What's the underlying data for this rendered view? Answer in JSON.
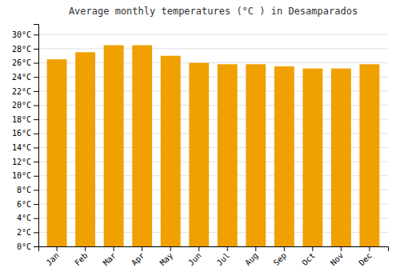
{
  "chart_data": {
    "type": "bar",
    "title": "Average monthly temperatures (°C ) in Desamparados",
    "categories": [
      "Jan",
      "Feb",
      "Mar",
      "Apr",
      "May",
      "Jun",
      "Jul",
      "Aug",
      "Sep",
      "Oct",
      "Nov",
      "Dec"
    ],
    "values": [
      26.5,
      27.5,
      28.5,
      28.5,
      27.0,
      26.0,
      25.8,
      25.8,
      25.5,
      25.2,
      25.2,
      25.8
    ],
    "color": "#F0A000",
    "ylim": [
      0,
      31.5
    ],
    "yticks": [
      {
        "value": 0,
        "label": "0°C"
      },
      {
        "value": 2,
        "label": "2°C"
      },
      {
        "value": 4,
        "label": "4°C"
      },
      {
        "value": 6,
        "label": "6°C"
      },
      {
        "value": 8,
        "label": "8°C"
      },
      {
        "value": 10,
        "label": "10°C"
      },
      {
        "value": 12,
        "label": "12°C"
      },
      {
        "value": 14,
        "label": "14°C"
      },
      {
        "value": 16,
        "label": "16°C"
      },
      {
        "value": 18,
        "label": "18°C"
      },
      {
        "value": 20,
        "label": "20°C"
      },
      {
        "value": 22,
        "label": "22°C"
      },
      {
        "value": 24,
        "label": "24°C"
      },
      {
        "value": 26,
        "label": "26°C"
      },
      {
        "value": 28,
        "label": "28°C"
      },
      {
        "value": 30,
        "label": "30°C"
      }
    ],
    "grid": true
  }
}
